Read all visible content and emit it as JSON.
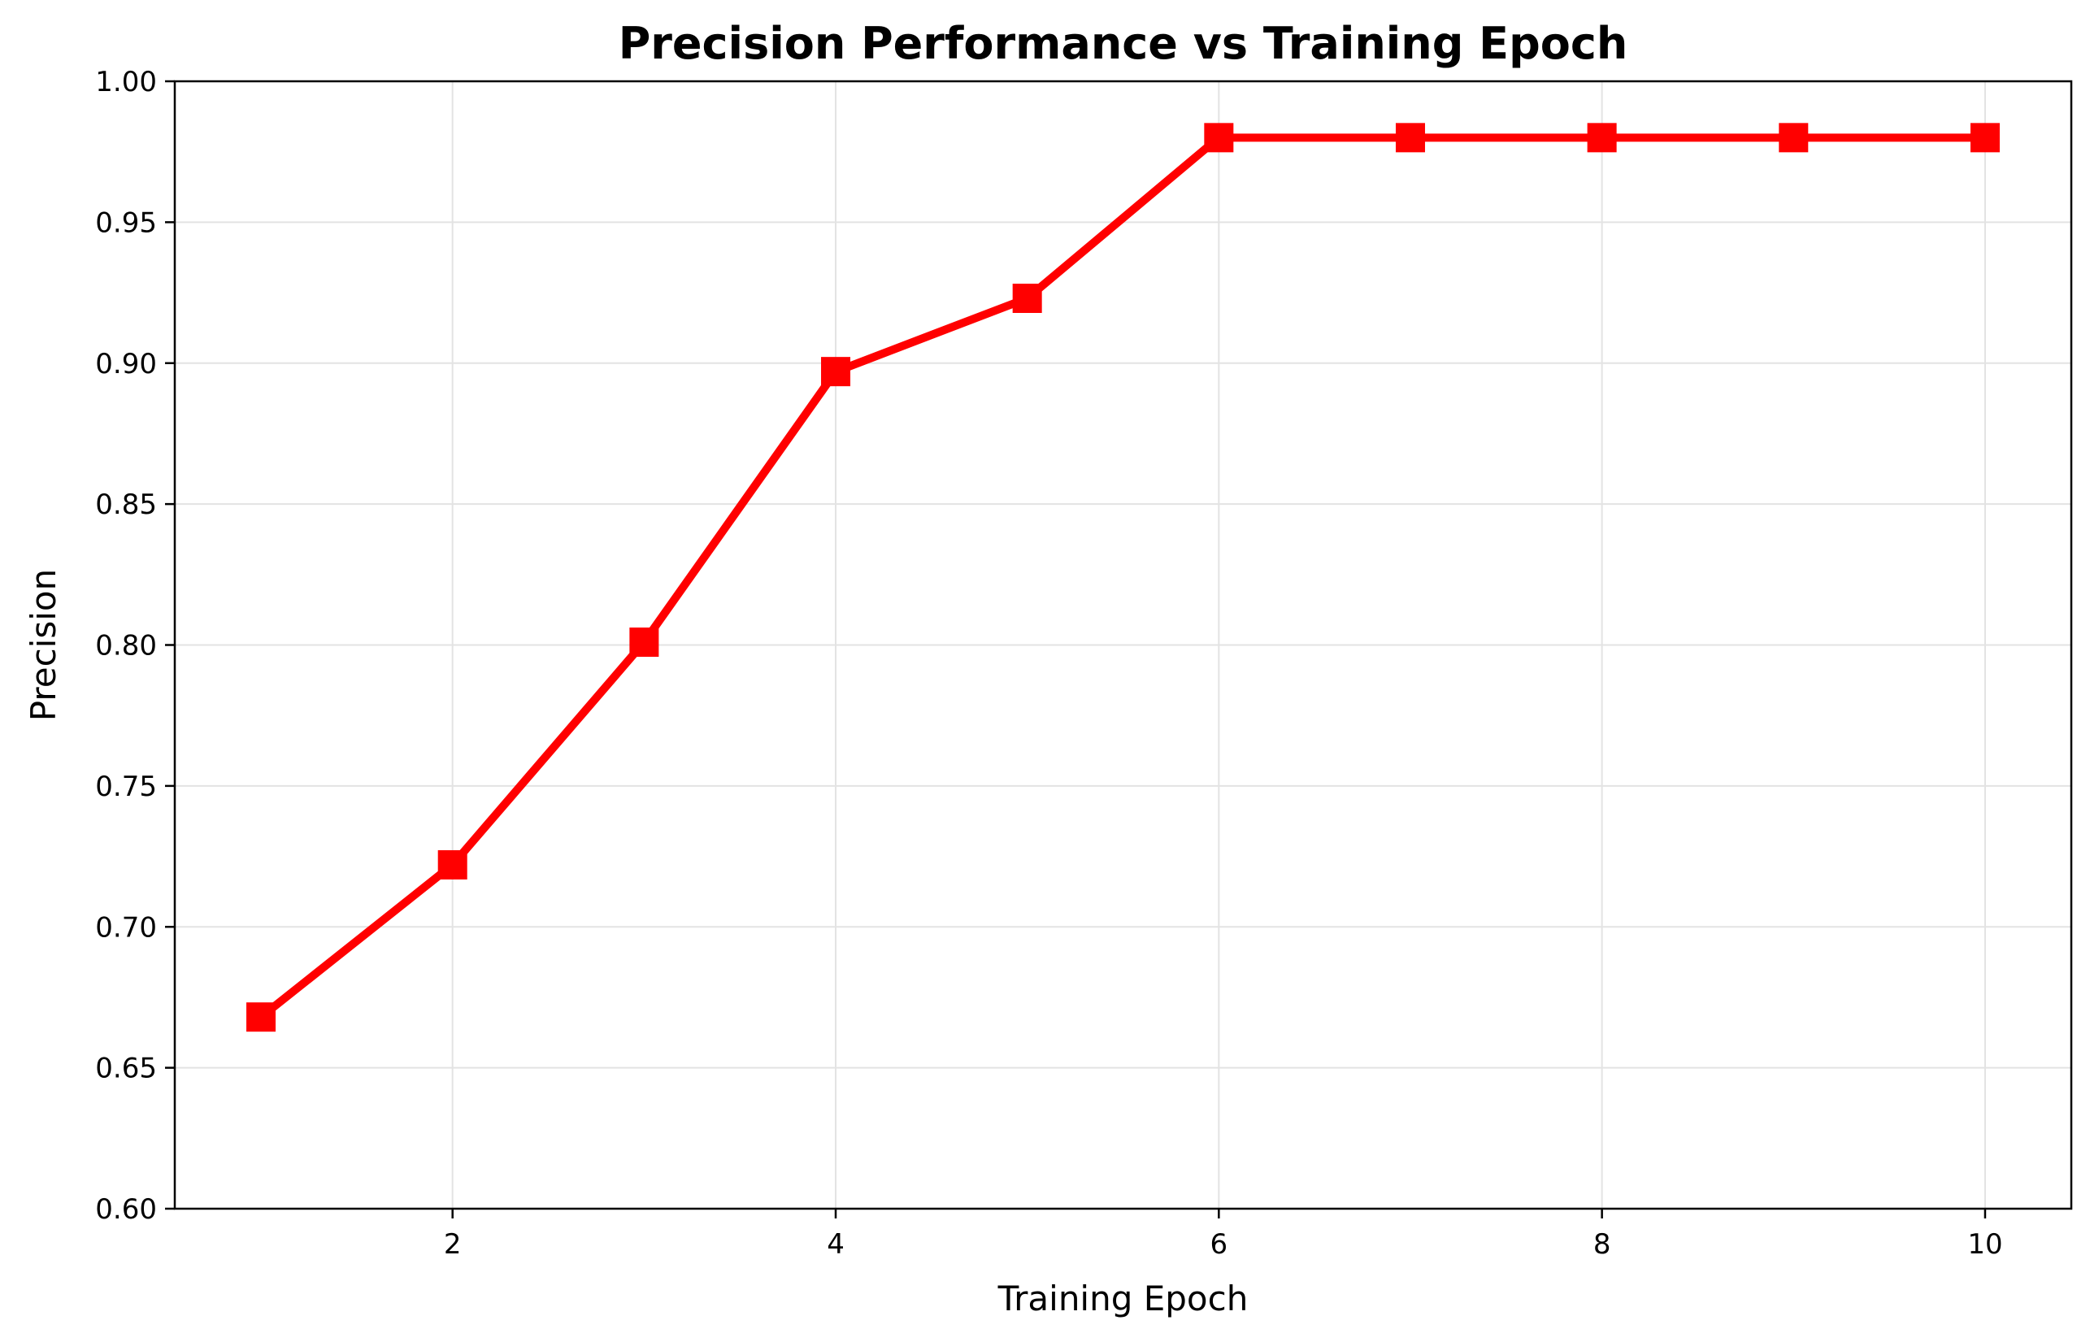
{
  "chart_data": {
    "type": "line",
    "title": "Precision Performance vs Training Epoch",
    "xlabel": "Training Epoch",
    "ylabel": "Precision",
    "xlim": [
      0.55,
      10.45
    ],
    "ylim": [
      0.6,
      1.0
    ],
    "xticks": [
      2,
      4,
      6,
      8,
      10
    ],
    "xtick_labels": [
      "2",
      "4",
      "6",
      "8",
      "10"
    ],
    "yticks": [
      0.6,
      0.65,
      0.7,
      0.75,
      0.8,
      0.85,
      0.9,
      0.95,
      1.0
    ],
    "ytick_labels": [
      "0.60",
      "0.65",
      "0.70",
      "0.75",
      "0.80",
      "0.85",
      "0.90",
      "0.95",
      "1.00"
    ],
    "grid": true,
    "series": [
      {
        "name": "Precision",
        "color": "#ff0000",
        "marker": "square",
        "x": [
          1,
          2,
          3,
          4,
          5,
          6,
          7,
          8,
          9,
          10
        ],
        "values": [
          0.668,
          0.722,
          0.801,
          0.897,
          0.923,
          0.98,
          0.98,
          0.98,
          0.98,
          0.98
        ]
      }
    ]
  }
}
